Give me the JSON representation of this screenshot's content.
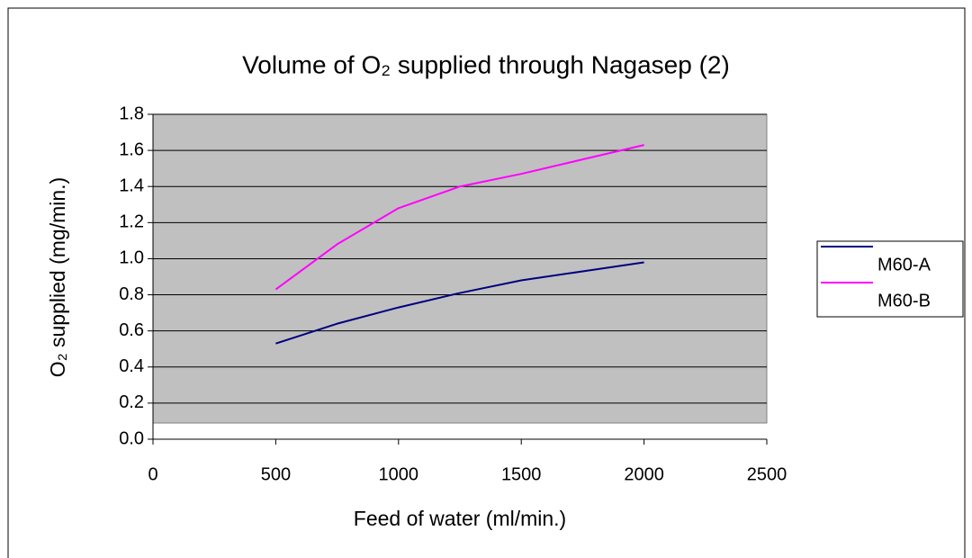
{
  "chart_data": {
    "type": "line",
    "title": "Volume of O₂ supplied through Nagasep (2)",
    "x_label": "Feed of water (ml/min.)",
    "y_label": "O₂ supplied (mg/min.)",
    "x": [
      500,
      750,
      1000,
      1250,
      1500,
      1750,
      2000
    ],
    "series": [
      {
        "name": "M60-A",
        "color": "#000080",
        "values": [
          0.53,
          0.64,
          0.73,
          0.81,
          0.88,
          0.93,
          0.98
        ]
      },
      {
        "name": "M60-B",
        "color": "#ff00ff",
        "values": [
          0.83,
          1.08,
          1.28,
          1.4,
          1.47,
          1.55,
          1.63
        ]
      }
    ],
    "xlim": [
      0,
      2500
    ],
    "xticks": [
      0,
      500,
      1000,
      1500,
      2000,
      2500
    ],
    "ylim": [
      0,
      1.8
    ],
    "yticks": [
      {
        "value": 0,
        "label": "0.0"
      },
      0.2,
      0.4,
      0.6,
      0.8,
      {
        "value": 1,
        "label": "1.0"
      },
      1.2,
      1.4,
      1.6,
      1.8
    ],
    "grid": true,
    "legend": "right"
  }
}
